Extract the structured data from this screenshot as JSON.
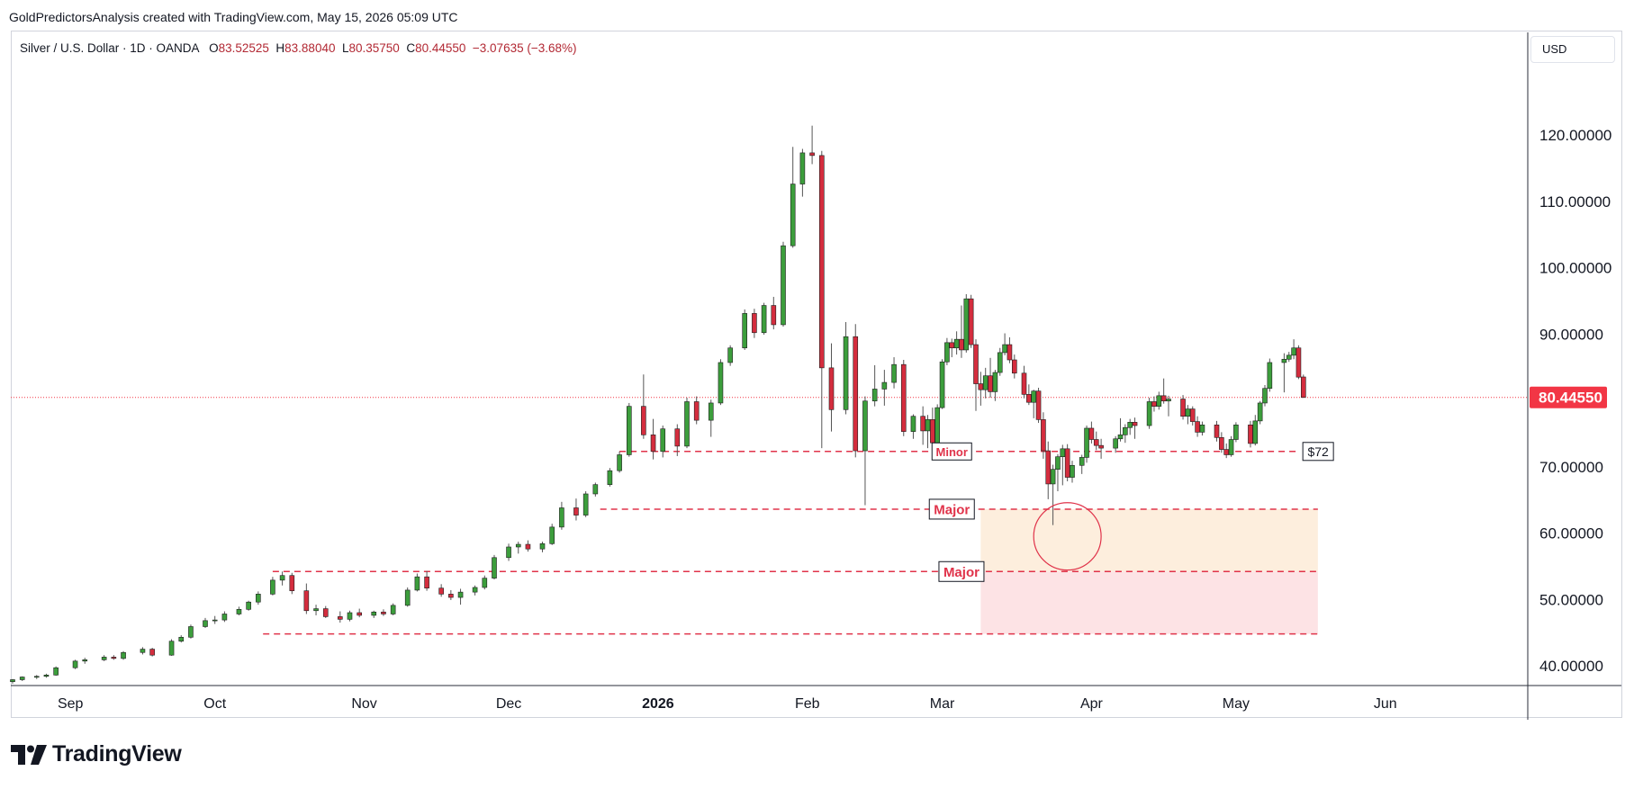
{
  "header": {
    "credit": "GoldPredictorsAnalysis created with TradingView.com, May 15, 2026 05:09 UTC"
  },
  "legend": {
    "symbol": "Silver / U.S. Dollar · 1D · OANDA",
    "o_label": "O",
    "o_value": "83.52525",
    "h_label": "H",
    "h_value": "83.88040",
    "l_label": "L",
    "l_value": "80.35750",
    "c_label": "C",
    "c_value": "80.44550",
    "change": "−3.07635 (−3.68%)"
  },
  "currency_button": {
    "label": "USD"
  },
  "brand": {
    "name": "TradingView"
  },
  "colors": {
    "up": "#089981",
    "up_body": "#3c9e3c",
    "down": "#d9263b",
    "down_body": "#d42d3e",
    "level_line": "#e0334a",
    "last_price_tag": "#f23645",
    "zone_upper": "#fdeedd",
    "zone_lower": "#fde3e5"
  },
  "chart_data": {
    "type": "candlestick",
    "title": "Silver / U.S. Dollar · 1D · OANDA",
    "ylim": [
      32,
      125
    ],
    "y_ticks": [
      40,
      50,
      60,
      70,
      80,
      90,
      100,
      110,
      120
    ],
    "y_tick_labels": [
      "40.00000",
      "50.00000",
      "60.00000",
      "70.00000",
      "80.00000",
      "90.00000",
      "100.00000",
      "110.00000",
      "120.00000"
    ],
    "x_ticks": [
      {
        "label": "Sep",
        "date": "2025-09-01",
        "bold": false
      },
      {
        "label": "Oct",
        "date": "2025-10-01",
        "bold": false
      },
      {
        "label": "Nov",
        "date": "2025-11-01",
        "bold": false
      },
      {
        "label": "Dec",
        "date": "2025-12-01",
        "bold": false
      },
      {
        "label": "2026",
        "date": "2026-01-01",
        "bold": true
      },
      {
        "label": "Feb",
        "date": "2026-02-01",
        "bold": false
      },
      {
        "label": "Mar",
        "date": "2026-03-01",
        "bold": false
      },
      {
        "label": "Apr",
        "date": "2026-04-01",
        "bold": false
      },
      {
        "label": "May",
        "date": "2026-05-01",
        "bold": false
      },
      {
        "label": "Jun",
        "date": "2026-06-01",
        "bold": false
      }
    ],
    "last_price": 80.4455,
    "last_price_label": "80.44550",
    "candles": [
      [
        "2025-08-20",
        37.6,
        38.0,
        37.3,
        37.9
      ],
      [
        "2025-08-22",
        37.9,
        38.4,
        37.7,
        38.3
      ],
      [
        "2025-08-25",
        38.3,
        38.6,
        38.0,
        38.4
      ],
      [
        "2025-08-27",
        38.4,
        38.8,
        38.2,
        38.6
      ],
      [
        "2025-08-29",
        38.6,
        39.9,
        38.5,
        39.7
      ],
      [
        "2025-09-02",
        39.7,
        40.9,
        39.5,
        40.7
      ],
      [
        "2025-09-04",
        40.7,
        41.2,
        40.3,
        40.9
      ],
      [
        "2025-09-08",
        40.9,
        41.6,
        40.7,
        41.3
      ],
      [
        "2025-09-10",
        41.3,
        41.6,
        40.9,
        41.1
      ],
      [
        "2025-09-12",
        41.1,
        42.2,
        40.9,
        42.0
      ],
      [
        "2025-09-16",
        42.0,
        42.8,
        41.7,
        42.5
      ],
      [
        "2025-09-18",
        42.5,
        42.7,
        41.4,
        41.6
      ],
      [
        "2025-09-22",
        41.6,
        44.0,
        41.5,
        43.7
      ],
      [
        "2025-09-24",
        43.7,
        44.6,
        43.5,
        44.3
      ],
      [
        "2025-09-26",
        44.3,
        46.2,
        44.1,
        45.9
      ],
      [
        "2025-09-29",
        45.9,
        47.2,
        45.7,
        46.8
      ],
      [
        "2025-10-01",
        46.8,
        47.5,
        46.3,
        46.9
      ],
      [
        "2025-10-03",
        46.9,
        48.2,
        46.6,
        47.8
      ],
      [
        "2025-10-06",
        47.8,
        48.9,
        47.6,
        48.5
      ],
      [
        "2025-10-08",
        48.5,
        49.8,
        48.3,
        49.6
      ],
      [
        "2025-10-10",
        49.6,
        51.2,
        49.2,
        50.8
      ],
      [
        "2025-10-13",
        50.8,
        53.4,
        50.6,
        52.9
      ],
      [
        "2025-10-15",
        52.9,
        54.2,
        52.1,
        53.6
      ],
      [
        "2025-10-17",
        53.6,
        54.0,
        50.8,
        51.3
      ],
      [
        "2025-10-20",
        51.3,
        52.4,
        47.8,
        48.3
      ],
      [
        "2025-10-22",
        48.3,
        49.2,
        47.6,
        48.6
      ],
      [
        "2025-10-24",
        48.6,
        49.0,
        47.2,
        47.4
      ],
      [
        "2025-10-27",
        47.4,
        48.2,
        46.5,
        47.0
      ],
      [
        "2025-10-29",
        47.0,
        48.3,
        46.7,
        48.0
      ],
      [
        "2025-10-31",
        48.0,
        48.6,
        47.3,
        47.6
      ],
      [
        "2025-11-03",
        47.6,
        48.3,
        47.2,
        48.1
      ],
      [
        "2025-11-05",
        48.1,
        48.5,
        47.5,
        47.8
      ],
      [
        "2025-11-07",
        47.8,
        49.4,
        47.6,
        49.1
      ],
      [
        "2025-11-10",
        49.1,
        51.8,
        48.9,
        51.4
      ],
      [
        "2025-11-12",
        51.4,
        53.9,
        51.2,
        53.4
      ],
      [
        "2025-11-14",
        53.4,
        54.3,
        51.3,
        51.7
      ],
      [
        "2025-11-17",
        51.7,
        52.3,
        50.4,
        50.8
      ],
      [
        "2025-11-19",
        50.8,
        51.4,
        49.9,
        50.3
      ],
      [
        "2025-11-21",
        50.3,
        51.6,
        49.2,
        51.1
      ],
      [
        "2025-11-24",
        51.1,
        52.1,
        50.6,
        51.8
      ],
      [
        "2025-11-26",
        51.8,
        53.6,
        51.5,
        53.2
      ],
      [
        "2025-11-28",
        53.2,
        56.7,
        53.0,
        56.3
      ],
      [
        "2025-12-01",
        56.3,
        58.4,
        55.8,
        57.9
      ],
      [
        "2025-12-03",
        57.9,
        58.7,
        56.9,
        58.3
      ],
      [
        "2025-12-05",
        58.3,
        58.9,
        57.2,
        57.6
      ],
      [
        "2025-12-08",
        57.6,
        58.7,
        57.1,
        58.4
      ],
      [
        "2025-12-10",
        58.4,
        61.4,
        58.2,
        60.9
      ],
      [
        "2025-12-12",
        60.9,
        64.7,
        60.5,
        63.8
      ],
      [
        "2025-12-15",
        63.8,
        65.2,
        61.9,
        62.7
      ],
      [
        "2025-12-17",
        62.7,
        66.3,
        62.4,
        65.9
      ],
      [
        "2025-12-19",
        65.9,
        67.6,
        65.5,
        67.3
      ],
      [
        "2025-12-22",
        67.3,
        69.8,
        67.0,
        69.4
      ],
      [
        "2025-12-24",
        69.4,
        72.3,
        69.1,
        71.8
      ],
      [
        "2025-12-26",
        71.8,
        79.6,
        71.5,
        79.1
      ],
      [
        "2025-12-29",
        79.1,
        83.9,
        74.2,
        74.8
      ],
      [
        "2025-12-31",
        74.8,
        77.2,
        71.1,
        72.3
      ],
      [
        "2026-01-02",
        72.3,
        76.2,
        71.4,
        75.7
      ],
      [
        "2026-01-05",
        75.7,
        76.4,
        71.6,
        73.1
      ],
      [
        "2026-01-07",
        73.1,
        80.4,
        72.8,
        79.8
      ],
      [
        "2026-01-09",
        79.8,
        80.6,
        76.4,
        77.0
      ],
      [
        "2026-01-12",
        77.0,
        80.1,
        74.5,
        79.6
      ],
      [
        "2026-01-14",
        79.6,
        86.2,
        79.3,
        85.7
      ],
      [
        "2026-01-16",
        85.7,
        88.3,
        85.2,
        87.9
      ],
      [
        "2026-01-19",
        87.9,
        93.7,
        87.6,
        93.1
      ],
      [
        "2026-01-21",
        93.1,
        93.8,
        89.4,
        90.2
      ],
      [
        "2026-01-23",
        90.2,
        94.7,
        89.9,
        94.3
      ],
      [
        "2026-01-25",
        94.3,
        95.6,
        90.7,
        91.4
      ],
      [
        "2026-01-27",
        91.4,
        103.9,
        91.1,
        103.3
      ],
      [
        "2026-01-29",
        103.3,
        118.2,
        103.0,
        112.6
      ],
      [
        "2026-01-31",
        112.6,
        117.9,
        110.7,
        117.3
      ],
      [
        "2026-02-02",
        117.3,
        121.4,
        115.6,
        116.9
      ],
      [
        "2026-02-04",
        116.9,
        117.6,
        72.8,
        84.9
      ],
      [
        "2026-02-06",
        84.9,
        88.6,
        75.3,
        78.6
      ],
      [
        "2026-02-09",
        78.6,
        91.8,
        77.9,
        89.6
      ],
      [
        "2026-02-11",
        89.6,
        91.5,
        71.4,
        72.4
      ],
      [
        "2026-02-13",
        72.4,
        80.6,
        64.2,
        79.9
      ],
      [
        "2026-02-15",
        79.9,
        85.3,
        79.1,
        81.7
      ],
      [
        "2026-02-17",
        81.7,
        84.6,
        79.2,
        82.7
      ],
      [
        "2026-02-19",
        82.7,
        86.5,
        81.8,
        85.4
      ],
      [
        "2026-02-21",
        85.4,
        86.1,
        74.6,
        75.3
      ],
      [
        "2026-02-23",
        75.3,
        77.9,
        74.2,
        77.6
      ],
      [
        "2026-02-25",
        77.6,
        79.1,
        73.3,
        75.4
      ],
      [
        "2026-02-26",
        75.4,
        77.8,
        72.8,
        77.1
      ],
      [
        "2026-02-27",
        77.1,
        78.9,
        72.6,
        73.6
      ],
      [
        "2026-02-28",
        73.6,
        79.4,
        73.2,
        78.9
      ],
      [
        "2026-03-01",
        78.9,
        86.2,
        78.7,
        85.8
      ],
      [
        "2026-03-02",
        85.8,
        89.4,
        85.3,
        88.7
      ],
      [
        "2026-03-03",
        88.7,
        89.3,
        86.5,
        87.9
      ],
      [
        "2026-03-04",
        87.9,
        90.4,
        86.9,
        89.2
      ],
      [
        "2026-03-05",
        89.2,
        94.3,
        86.4,
        87.6
      ],
      [
        "2026-03-06",
        87.6,
        96.0,
        87.2,
        95.3
      ],
      [
        "2026-03-07",
        95.3,
        95.9,
        87.9,
        88.4
      ],
      [
        "2026-03-08",
        88.4,
        89.2,
        78.4,
        82.5
      ],
      [
        "2026-03-09",
        82.5,
        84.3,
        79.2,
        81.6
      ],
      [
        "2026-03-10",
        81.6,
        84.9,
        80.3,
        83.7
      ],
      [
        "2026-03-11",
        83.7,
        86.4,
        80.4,
        81.3
      ],
      [
        "2026-03-12",
        81.3,
        84.6,
        79.9,
        84.2
      ],
      [
        "2026-03-13",
        84.2,
        87.9,
        83.7,
        87.2
      ],
      [
        "2026-03-14",
        87.2,
        90.1,
        86.8,
        88.4
      ],
      [
        "2026-03-15",
        88.4,
        89.5,
        85.6,
        86.1
      ],
      [
        "2026-03-16",
        86.1,
        86.9,
        83.3,
        84.1
      ],
      [
        "2026-03-18",
        84.1,
        85.2,
        80.3,
        80.9
      ],
      [
        "2026-03-19",
        80.9,
        82.4,
        79.3,
        79.7
      ],
      [
        "2026-03-20",
        79.7,
        81.6,
        77.3,
        81.4
      ],
      [
        "2026-03-21",
        81.4,
        81.9,
        76.6,
        77.1
      ],
      [
        "2026-03-22",
        77.1,
        78.2,
        71.2,
        72.4
      ],
      [
        "2026-03-23",
        72.4,
        73.8,
        65.1,
        67.4
      ],
      [
        "2026-03-24",
        67.4,
        70.3,
        61.2,
        69.6
      ],
      [
        "2026-03-25",
        69.6,
        71.9,
        66.3,
        71.5
      ],
      [
        "2026-03-26",
        71.5,
        73.3,
        67.2,
        72.7
      ],
      [
        "2026-03-27",
        72.7,
        73.4,
        67.8,
        68.4
      ],
      [
        "2026-03-28",
        68.4,
        70.9,
        67.6,
        70.2
      ],
      [
        "2026-03-30",
        70.2,
        71.8,
        68.9,
        71.4
      ],
      [
        "2026-03-31",
        71.4,
        76.2,
        70.6,
        75.8
      ],
      [
        "2026-04-01",
        75.8,
        76.8,
        73.5,
        74.1
      ],
      [
        "2026-04-02",
        74.1,
        75.3,
        72.5,
        73.2
      ],
      [
        "2026-04-03",
        73.2,
        74.2,
        71.2,
        72.8
      ],
      [
        "2026-04-06",
        72.8,
        74.6,
        72.1,
        74.2
      ],
      [
        "2026-04-07",
        74.2,
        77.3,
        73.8,
        74.8
      ],
      [
        "2026-04-08",
        74.8,
        76.4,
        73.6,
        75.9
      ],
      [
        "2026-04-09",
        75.9,
        77.2,
        74.8,
        76.7
      ],
      [
        "2026-04-10",
        76.7,
        77.4,
        74.2,
        76.2
      ],
      [
        "2026-04-13",
        76.2,
        80.4,
        75.7,
        79.8
      ],
      [
        "2026-04-14",
        79.8,
        80.6,
        78.3,
        79.1
      ],
      [
        "2026-04-15",
        79.1,
        81.3,
        78.6,
        80.7
      ],
      [
        "2026-04-16",
        80.7,
        83.3,
        79.5,
        79.9
      ],
      [
        "2026-04-17",
        79.9,
        80.7,
        77.6,
        80.2
      ],
      [
        "2026-04-20",
        80.2,
        80.8,
        77.1,
        77.6
      ],
      [
        "2026-04-21",
        77.6,
        79.3,
        76.4,
        78.7
      ],
      [
        "2026-04-22",
        78.7,
        79.1,
        76.2,
        76.8
      ],
      [
        "2026-04-23",
        76.8,
        77.6,
        74.5,
        75.2
      ],
      [
        "2026-04-24",
        75.2,
        76.8,
        74.7,
        76.3
      ],
      [
        "2026-04-27",
        76.3,
        76.9,
        73.8,
        74.4
      ],
      [
        "2026-04-28",
        74.4,
        75.2,
        72.1,
        72.6
      ],
      [
        "2026-04-29",
        72.6,
        73.5,
        71.3,
        71.8
      ],
      [
        "2026-04-30",
        71.8,
        74.6,
        71.5,
        74.1
      ],
      [
        "2026-05-01",
        74.1,
        76.7,
        73.7,
        76.3
      ],
      [
        "2026-05-04",
        76.3,
        76.9,
        72.9,
        73.5
      ],
      [
        "2026-05-05",
        73.5,
        77.8,
        73.2,
        76.9
      ],
      [
        "2026-05-06",
        76.9,
        79.9,
        76.4,
        79.6
      ],
      [
        "2026-05-07",
        79.6,
        82.3,
        79.1,
        81.8
      ],
      [
        "2026-05-08",
        81.8,
        86.3,
        81.3,
        85.7
      ],
      [
        "2026-05-11",
        85.7,
        87.1,
        81.2,
        86.2
      ],
      [
        "2026-05-12",
        86.2,
        87.3,
        85.8,
        86.8
      ],
      [
        "2026-05-13",
        86.8,
        89.2,
        86.2,
        87.9
      ],
      [
        "2026-05-14",
        87.9,
        88.3,
        83.2,
        83.5
      ],
      [
        "2026-05-15",
        83.52525,
        83.8804,
        80.3575,
        80.4455
      ]
    ],
    "levels": [
      {
        "price": 72.3,
        "start": "2025-12-24",
        "end": "2026-05-14",
        "label": "Minor",
        "label_date": "2026-03-03"
      },
      {
        "price": 63.6,
        "start": "2025-12-20",
        "end": "2026-05-18",
        "label": "Major",
        "label_date": "2026-03-03"
      },
      {
        "price": 54.2,
        "start": "2025-10-13",
        "end": "2026-05-18",
        "label": "Major",
        "label_date": "2026-03-05"
      },
      {
        "price": 44.8,
        "start": "2025-10-11",
        "end": "2026-05-18",
        "label": "",
        "label_date": ""
      }
    ],
    "zones": [
      {
        "from": 54.2,
        "to": 63.6,
        "start": "2026-03-09",
        "end": "2026-05-18",
        "color": "#fdeedd"
      },
      {
        "from": 44.8,
        "to": 54.2,
        "start": "2026-03-09",
        "end": "2026-05-18",
        "color": "#fde3e5"
      }
    ],
    "callout": {
      "text": "$72",
      "price": 72.3,
      "date": "2026-05-16"
    },
    "circle": {
      "date": "2026-03-27",
      "price": 59.5,
      "radius_days": 7
    }
  }
}
